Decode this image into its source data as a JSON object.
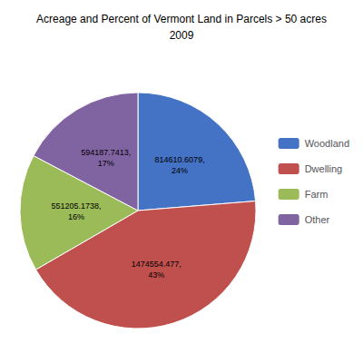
{
  "chart_data": {
    "type": "pie",
    "title": "Acreage and Percent of Vermont Land in Parcels > 50 acres",
    "subtitle": "2009",
    "categories": [
      "Woodland",
      "Dwelling",
      "Farm",
      "Other"
    ],
    "values": [
      814610.6079,
      1474554.477,
      551205.1738,
      594187.7413
    ],
    "value_labels": [
      "814610.6079,\n24%",
      "1474554.477,\n43%",
      "551205.1738,\n16%",
      "594187.7413,\n17%"
    ],
    "colors": [
      "#4472C4",
      "#C0504D",
      "#9BBB59",
      "#8064A2"
    ],
    "data_labels": true,
    "legend": "right"
  }
}
